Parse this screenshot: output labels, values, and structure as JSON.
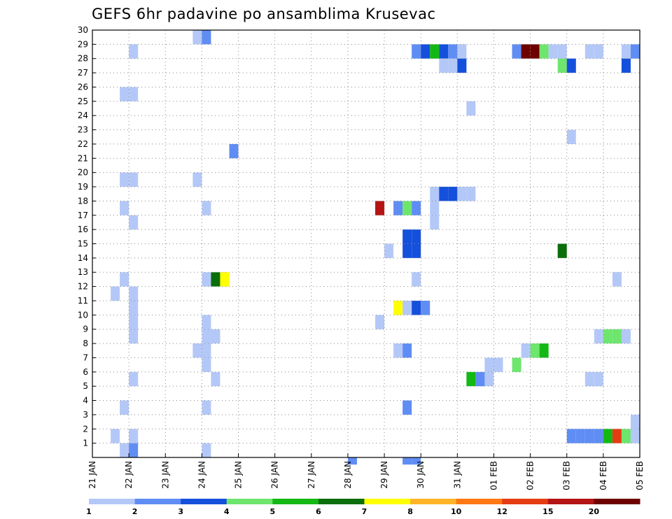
{
  "chart_data": {
    "type": "heatmap",
    "title": "GEFS 6hr padavine po ansamblima Krusevac",
    "xlabel": "",
    "ylabel": "",
    "x_ticks": [
      "21 JAN",
      "22 JAN",
      "23 JAN",
      "24 JAN",
      "25 JAN",
      "26 JAN",
      "27 JAN",
      "28 JAN",
      "29 JAN",
      "30 JAN",
      "31 JAN",
      "01 FEB",
      "02 FEB",
      "03 FEB",
      "04 FEB",
      "05 FEB"
    ],
    "x_range_days": [
      0,
      15
    ],
    "x_step_hours": 6,
    "y_ticks": [
      1,
      2,
      3,
      4,
      5,
      6,
      7,
      8,
      9,
      10,
      11,
      12,
      13,
      14,
      15,
      16,
      17,
      18,
      19,
      20,
      21,
      22,
      23,
      24,
      25,
      26,
      27,
      28,
      29,
      30
    ],
    "y_range": [
      0,
      30
    ],
    "grid": true,
    "colorbar": {
      "labels": [
        "1",
        "2",
        "3",
        "4",
        "5",
        "6",
        "7",
        "8",
        "10",
        "12",
        "15",
        "20"
      ],
      "colors": [
        "#b4c8f8",
        "#5f8df4",
        "#1450dc",
        "#6ee66e",
        "#14b814",
        "#0a6e0a",
        "#ffff00",
        "#ffb428",
        "#ff7814",
        "#e63c14",
        "#b41414",
        "#6e0000"
      ]
    },
    "cells": [
      [
        0.5,
        1,
        0
      ],
      [
        0.75,
        0,
        0
      ],
      [
        1,
        0,
        1
      ],
      [
        0.5,
        11,
        0
      ],
      [
        1,
        1,
        0
      ],
      [
        1,
        5,
        0
      ],
      [
        1,
        8,
        0
      ],
      [
        1,
        9,
        0
      ],
      [
        1,
        10,
        0
      ],
      [
        1,
        11,
        0
      ],
      [
        1,
        16,
        0
      ],
      [
        0.75,
        12,
        0
      ],
      [
        0.75,
        17,
        0
      ],
      [
        1,
        28,
        0
      ],
      [
        0.75,
        19,
        0
      ],
      [
        1,
        19,
        0
      ],
      [
        0.75,
        25,
        0
      ],
      [
        1,
        25,
        0
      ],
      [
        0.75,
        3,
        0
      ],
      [
        2.75,
        29,
        0
      ],
      [
        3,
        29,
        1
      ],
      [
        2.75,
        7,
        0
      ],
      [
        3,
        7,
        0
      ],
      [
        2.75,
        19,
        0
      ],
      [
        3,
        0,
        0
      ],
      [
        3,
        3,
        0
      ],
      [
        3,
        6,
        0
      ],
      [
        3,
        8,
        0
      ],
      [
        3,
        9,
        0
      ],
      [
        3,
        12,
        0
      ],
      [
        3,
        17,
        0
      ],
      [
        3.25,
        5,
        0
      ],
      [
        3.25,
        8,
        0
      ],
      [
        3.25,
        12,
        5
      ],
      [
        3.5,
        12,
        6
      ],
      [
        3.75,
        21,
        1
      ],
      [
        7,
        -1,
        1
      ],
      [
        7.75,
        9,
        0
      ],
      [
        7.75,
        17,
        10
      ],
      [
        8,
        14,
        0
      ],
      [
        8.25,
        10,
        6
      ],
      [
        8.25,
        17,
        1
      ],
      [
        8.5,
        -1,
        1
      ],
      [
        8.75,
        -1,
        1
      ],
      [
        8.5,
        3,
        1
      ],
      [
        8.25,
        7,
        0
      ],
      [
        8.5,
        7,
        1
      ],
      [
        8.5,
        10,
        0
      ],
      [
        8.75,
        10,
        2
      ],
      [
        9,
        10,
        1
      ],
      [
        8.5,
        14,
        2
      ],
      [
        8.75,
        14,
        2
      ],
      [
        8.5,
        15,
        2
      ],
      [
        8.75,
        15,
        2
      ],
      [
        8.5,
        17,
        3
      ],
      [
        8.75,
        17,
        1
      ],
      [
        8.75,
        12,
        0
      ],
      [
        9.25,
        16,
        0
      ],
      [
        9.25,
        17,
        0
      ],
      [
        9.25,
        18,
        0
      ],
      [
        9.5,
        18,
        2
      ],
      [
        9.75,
        18,
        2
      ],
      [
        10,
        18,
        0
      ],
      [
        10.25,
        18,
        0
      ],
      [
        8.75,
        28,
        1
      ],
      [
        9,
        28,
        2
      ],
      [
        9.25,
        28,
        4
      ],
      [
        9.5,
        28,
        2
      ],
      [
        9.75,
        28,
        1
      ],
      [
        10,
        28,
        0
      ],
      [
        9.5,
        27,
        0
      ],
      [
        9.75,
        27,
        0
      ],
      [
        10,
        27,
        2
      ],
      [
        10.25,
        24,
        0
      ],
      [
        10.25,
        5,
        4
      ],
      [
        10.5,
        5,
        1
      ],
      [
        10.75,
        5,
        0
      ],
      [
        10.75,
        6,
        0
      ],
      [
        11,
        6,
        0
      ],
      [
        11.5,
        6,
        3
      ],
      [
        11.75,
        7,
        0
      ],
      [
        12,
        7,
        3
      ],
      [
        12.25,
        7,
        4
      ],
      [
        11.5,
        28,
        1
      ],
      [
        11.75,
        28,
        11
      ],
      [
        12,
        28,
        11
      ],
      [
        12.25,
        28,
        3
      ],
      [
        12.5,
        28,
        0
      ],
      [
        12.75,
        28,
        0
      ],
      [
        12.75,
        27,
        3
      ],
      [
        13,
        27,
        2
      ],
      [
        13,
        22,
        0
      ],
      [
        12.75,
        14,
        5
      ],
      [
        13,
        1,
        1
      ],
      [
        13.25,
        1,
        1
      ],
      [
        13.5,
        1,
        1
      ],
      [
        13.75,
        1,
        1
      ],
      [
        14,
        1,
        4
      ],
      [
        14.25,
        1,
        9
      ],
      [
        14.5,
        1,
        3
      ],
      [
        14.75,
        1,
        0
      ],
      [
        14.75,
        2,
        0
      ],
      [
        13.5,
        5,
        0
      ],
      [
        13.75,
        5,
        0
      ],
      [
        13.75,
        8,
        0
      ],
      [
        14,
        8,
        3
      ],
      [
        14.25,
        8,
        3
      ],
      [
        14.5,
        8,
        0
      ],
      [
        13.5,
        28,
        0
      ],
      [
        13.75,
        28,
        0
      ],
      [
        14.5,
        28,
        0
      ],
      [
        14.75,
        28,
        1
      ],
      [
        14.5,
        27,
        2
      ],
      [
        14.25,
        12,
        0
      ]
    ]
  }
}
